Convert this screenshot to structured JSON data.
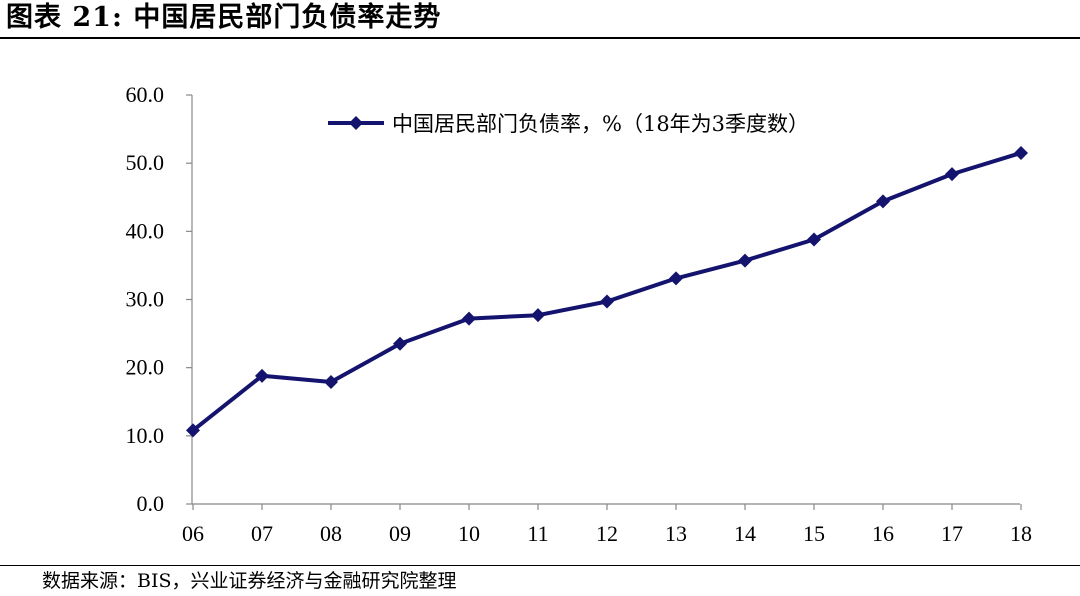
{
  "figure": {
    "title": "图表 21:  中国居民部门负债率走势",
    "source": "数据来源：BIS，兴业证券经济与金融研究院整理"
  },
  "chart_data": {
    "type": "line",
    "categories": [
      "06",
      "07",
      "08",
      "09",
      "10",
      "11",
      "12",
      "13",
      "14",
      "15",
      "16",
      "17",
      "18"
    ],
    "y_ticks": [
      "0.0",
      "10.0",
      "20.0",
      "30.0",
      "40.0",
      "50.0",
      "60.0"
    ],
    "ylim": [
      0,
      60
    ],
    "series": [
      {
        "name": "中国居民部门负债率，%（18年为3季度数）",
        "color": "#14146e",
        "marker": "diamond",
        "values": [
          10.8,
          18.8,
          17.9,
          23.5,
          27.2,
          27.7,
          29.7,
          33.1,
          35.7,
          38.8,
          44.4,
          48.4,
          51.5
        ]
      }
    ],
    "legend_position": "top",
    "grid": false,
    "xlabel": "",
    "ylabel": ""
  }
}
